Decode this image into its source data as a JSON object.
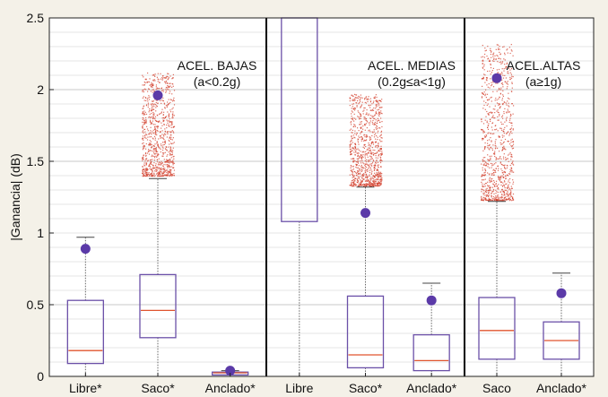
{
  "chart_data": {
    "type": "box",
    "title": "",
    "xlabel": "",
    "ylabel": "|Ganancia| (dB)",
    "ylim": [
      0,
      2.5
    ],
    "yticks": [
      0,
      0.5,
      1,
      1.5,
      2,
      2.5
    ],
    "yticklabels": [
      "0",
      "0.5",
      "1",
      "1.5",
      "2",
      "2.5"
    ],
    "grid": true,
    "groups": [
      {
        "label_line1": "ACEL. BAJAS",
        "label_line2": "(a<0.2g)",
        "boxes": [
          {
            "label": "Libre*",
            "min": 0.0,
            "q1": 0.09,
            "median": 0.18,
            "q3": 0.53,
            "whisker_high": 0.97,
            "mean": 0.89,
            "outliers_from": null,
            "outliers_to": null
          },
          {
            "label": "Saco*",
            "min": 0.0,
            "q1": 0.27,
            "median": 0.46,
            "q3": 0.71,
            "whisker_high": 1.38,
            "mean": 1.96,
            "outliers_from": 1.4,
            "outliers_to": 2.12
          },
          {
            "label": "Anclado*",
            "min": 0.0,
            "q1": 0.01,
            "median": 0.025,
            "q3": 0.03,
            "whisker_high": 0.04,
            "mean": 0.04,
            "outliers_from": null,
            "outliers_to": null
          }
        ]
      },
      {
        "label_line1": "ACEL. MEDIAS",
        "label_line2": "(0.2g≤a<1g)",
        "boxes": [
          {
            "label": "Libre",
            "min": 0.0,
            "q1": 1.08,
            "median": 2.6,
            "q3": 2.6,
            "whisker_high": 2.6,
            "mean": null,
            "outliers_from": null,
            "outliers_to": null
          },
          {
            "label": "Saco*",
            "min": 0.0,
            "q1": 0.06,
            "median": 0.15,
            "q3": 0.56,
            "whisker_high": 1.32,
            "mean": 1.14,
            "outliers_from": 1.33,
            "outliers_to": 1.97
          },
          {
            "label": "Anclado*",
            "min": 0.0,
            "q1": 0.04,
            "median": 0.11,
            "q3": 0.29,
            "whisker_high": 0.65,
            "mean": 0.53,
            "outliers_from": null,
            "outliers_to": null
          }
        ]
      },
      {
        "label_line1": "ACEL.ALTAS",
        "label_line2": "(a≥1g)",
        "boxes": [
          {
            "label": "Saco",
            "min": 0.0,
            "q1": 0.12,
            "median": 0.32,
            "q3": 0.55,
            "whisker_high": 1.22,
            "mean": 2.08,
            "outliers_from": 1.23,
            "outliers_to": 2.32
          },
          {
            "label": "Anclado*",
            "min": 0.0,
            "q1": 0.12,
            "median": 0.25,
            "q3": 0.38,
            "whisker_high": 0.72,
            "mean": 0.58,
            "outliers_from": null,
            "outliers_to": null
          }
        ]
      }
    ],
    "colors": {
      "box": "#6b50a8",
      "median": "#e0552e",
      "mean": "#5b3aa8",
      "outliers": "#d23c2a",
      "whisker": "#666666"
    }
  }
}
